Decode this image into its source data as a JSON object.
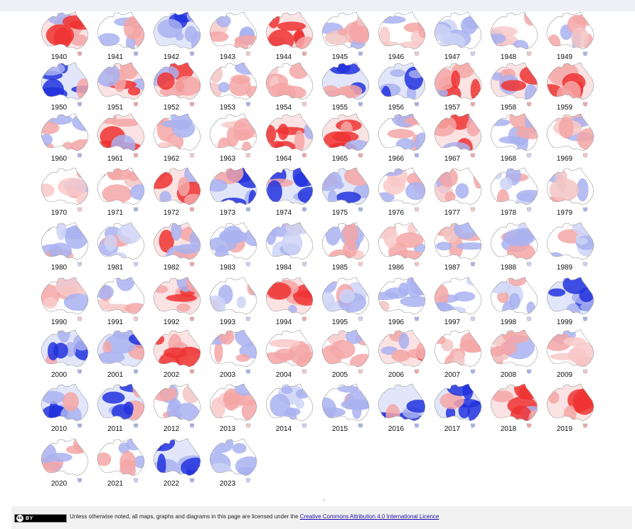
{
  "years": [
    {
      "label": "1940",
      "tone": "r"
    },
    {
      "label": "1941",
      "tone": "m"
    },
    {
      "label": "1942",
      "tone": "b"
    },
    {
      "label": "1943",
      "tone": "lr"
    },
    {
      "label": "1944",
      "tone": "r"
    },
    {
      "label": "1945",
      "tone": "m"
    },
    {
      "label": "1946",
      "tone": "lr"
    },
    {
      "label": "1947",
      "tone": "lb"
    },
    {
      "label": "1948",
      "tone": "lr"
    },
    {
      "label": "1949",
      "tone": "m"
    },
    {
      "label": "1950",
      "tone": "b"
    },
    {
      "label": "1951",
      "tone": "r"
    },
    {
      "label": "1952",
      "tone": "r"
    },
    {
      "label": "1953",
      "tone": "m"
    },
    {
      "label": "1954",
      "tone": "lr"
    },
    {
      "label": "1955",
      "tone": "b"
    },
    {
      "label": "1956",
      "tone": "b"
    },
    {
      "label": "1957",
      "tone": "r"
    },
    {
      "label": "1958",
      "tone": "r"
    },
    {
      "label": "1959",
      "tone": "r"
    },
    {
      "label": "1960",
      "tone": "m"
    },
    {
      "label": "1961",
      "tone": "r"
    },
    {
      "label": "1962",
      "tone": "lr"
    },
    {
      "label": "1963",
      "tone": "lr"
    },
    {
      "label": "1964",
      "tone": "r"
    },
    {
      "label": "1965",
      "tone": "r"
    },
    {
      "label": "1966",
      "tone": "m"
    },
    {
      "label": "1967",
      "tone": "r"
    },
    {
      "label": "1968",
      "tone": "lb"
    },
    {
      "label": "1969",
      "tone": "lr"
    },
    {
      "label": "1970",
      "tone": "lr"
    },
    {
      "label": "1971",
      "tone": "m"
    },
    {
      "label": "1972",
      "tone": "r"
    },
    {
      "label": "1973",
      "tone": "b"
    },
    {
      "label": "1974",
      "tone": "b"
    },
    {
      "label": "1975",
      "tone": "b"
    },
    {
      "label": "1976",
      "tone": "lr"
    },
    {
      "label": "1977",
      "tone": "lr"
    },
    {
      "label": "1978",
      "tone": "lb"
    },
    {
      "label": "1979",
      "tone": "m"
    },
    {
      "label": "1980",
      "tone": "lb"
    },
    {
      "label": "1981",
      "tone": "lb"
    },
    {
      "label": "1982",
      "tone": "r"
    },
    {
      "label": "1983",
      "tone": "lb"
    },
    {
      "label": "1984",
      "tone": "lb"
    },
    {
      "label": "1985",
      "tone": "lr"
    },
    {
      "label": "1986",
      "tone": "lr"
    },
    {
      "label": "1987",
      "tone": "m"
    },
    {
      "label": "1988",
      "tone": "lb"
    },
    {
      "label": "1989",
      "tone": "lb"
    },
    {
      "label": "1990",
      "tone": "lr"
    },
    {
      "label": "1991",
      "tone": "lr"
    },
    {
      "label": "1992",
      "tone": "r"
    },
    {
      "label": "1993",
      "tone": "lb"
    },
    {
      "label": "1994",
      "tone": "r"
    },
    {
      "label": "1995",
      "tone": "lb"
    },
    {
      "label": "1996",
      "tone": "m"
    },
    {
      "label": "1997",
      "tone": "lb"
    },
    {
      "label": "1998",
      "tone": "lb"
    },
    {
      "label": "1999",
      "tone": "b"
    },
    {
      "label": "2000",
      "tone": "b"
    },
    {
      "label": "2001",
      "tone": "b"
    },
    {
      "label": "2002",
      "tone": "r"
    },
    {
      "label": "2003",
      "tone": "m"
    },
    {
      "label": "2004",
      "tone": "lr"
    },
    {
      "label": "2005",
      "tone": "lr"
    },
    {
      "label": "2006",
      "tone": "r"
    },
    {
      "label": "2007",
      "tone": "m"
    },
    {
      "label": "2008",
      "tone": "m"
    },
    {
      "label": "2009",
      "tone": "lr"
    },
    {
      "label": "2010",
      "tone": "b"
    },
    {
      "label": "2011",
      "tone": "b"
    },
    {
      "label": "2012",
      "tone": "m"
    },
    {
      "label": "2013",
      "tone": "lr"
    },
    {
      "label": "2014",
      "tone": "lb"
    },
    {
      "label": "2015",
      "tone": "m"
    },
    {
      "label": "2016",
      "tone": "b"
    },
    {
      "label": "2017",
      "tone": "b"
    },
    {
      "label": "2018",
      "tone": "r"
    },
    {
      "label": "2019",
      "tone": "r"
    },
    {
      "label": "2020",
      "tone": "m"
    },
    {
      "label": "2021",
      "tone": "lb"
    },
    {
      "label": "2022",
      "tone": "b"
    },
    {
      "label": "2023",
      "tone": "lb"
    }
  ],
  "colors": {
    "strong_red": "#ee3333",
    "light_red": "#f4a6a6",
    "strong_blue": "#2233dd",
    "light_blue": "#a9b2f0",
    "outline": "#9a9a9a"
  },
  "footer": {
    "badge_label": "BY",
    "badge_cc": "cc",
    "text": "Unless otherwise noted, all maps, graphs and diagrams in this page are licensed under the ",
    "link_text": "Creative Commons Attribution 4.0 International Licence"
  }
}
